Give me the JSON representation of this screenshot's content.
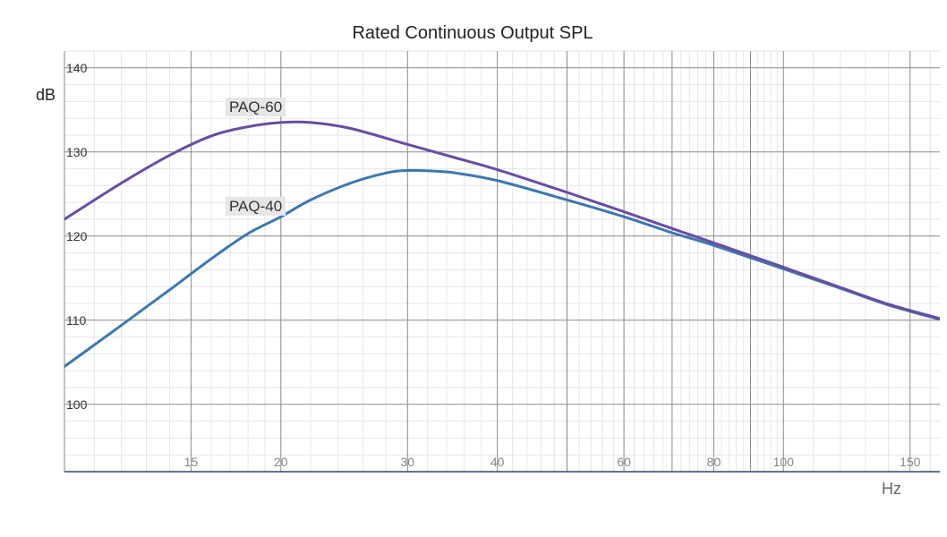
{
  "chart_data": {
    "type": "line",
    "title": "Rated Continuous Output SPL",
    "xlabel": "Hz",
    "ylabel": "dB",
    "x_scale": "log",
    "xlim": [
      10,
      165
    ],
    "ylim": [
      92,
      142
    ],
    "x_ticks": [
      {
        "value": 15,
        "label": "15"
      },
      {
        "value": 20,
        "label": "20"
      },
      {
        "value": 30,
        "label": "30"
      },
      {
        "value": 40,
        "label": "40"
      },
      {
        "value": 60,
        "label": "60"
      },
      {
        "value": 80,
        "label": "80"
      },
      {
        "value": 100,
        "label": "100"
      },
      {
        "value": 150,
        "label": "150"
      }
    ],
    "y_ticks": [
      {
        "value": 100,
        "label": "100"
      },
      {
        "value": 110,
        "label": "110"
      },
      {
        "value": 120,
        "label": "120"
      },
      {
        "value": 130,
        "label": "130"
      },
      {
        "value": 140,
        "label": "140"
      }
    ],
    "grid": true,
    "series": [
      {
        "name": "PAQ-60",
        "color": "#6a4ca3",
        "x": [
          10,
          12,
          14,
          16,
          18,
          20,
          22,
          25,
          30,
          35,
          40,
          50,
          60,
          70,
          80,
          100,
          120,
          140,
          165
        ],
        "y": [
          122.0,
          126.3,
          129.6,
          131.9,
          133.0,
          133.5,
          133.5,
          132.8,
          130.9,
          129.3,
          127.9,
          125.2,
          122.9,
          120.9,
          119.2,
          116.3,
          113.9,
          111.9,
          110.2
        ],
        "label_at": {
          "x": 16,
          "y": 135.3
        }
      },
      {
        "name": "PAQ-40",
        "color": "#3c78b0",
        "x": [
          10,
          12,
          14,
          16,
          18,
          20,
          22,
          25,
          28,
          30,
          33,
          35,
          40,
          50,
          60,
          70,
          80,
          100,
          120,
          140,
          165
        ],
        "y": [
          104.5,
          109.4,
          113.6,
          117.3,
          120.3,
          122.3,
          124.3,
          126.3,
          127.5,
          127.8,
          127.7,
          127.5,
          126.6,
          124.3,
          122.3,
          120.4,
          118.9,
          116.1,
          113.8,
          111.8,
          110.1
        ],
        "label_at": {
          "x": 16,
          "y": 123.5
        }
      }
    ]
  }
}
